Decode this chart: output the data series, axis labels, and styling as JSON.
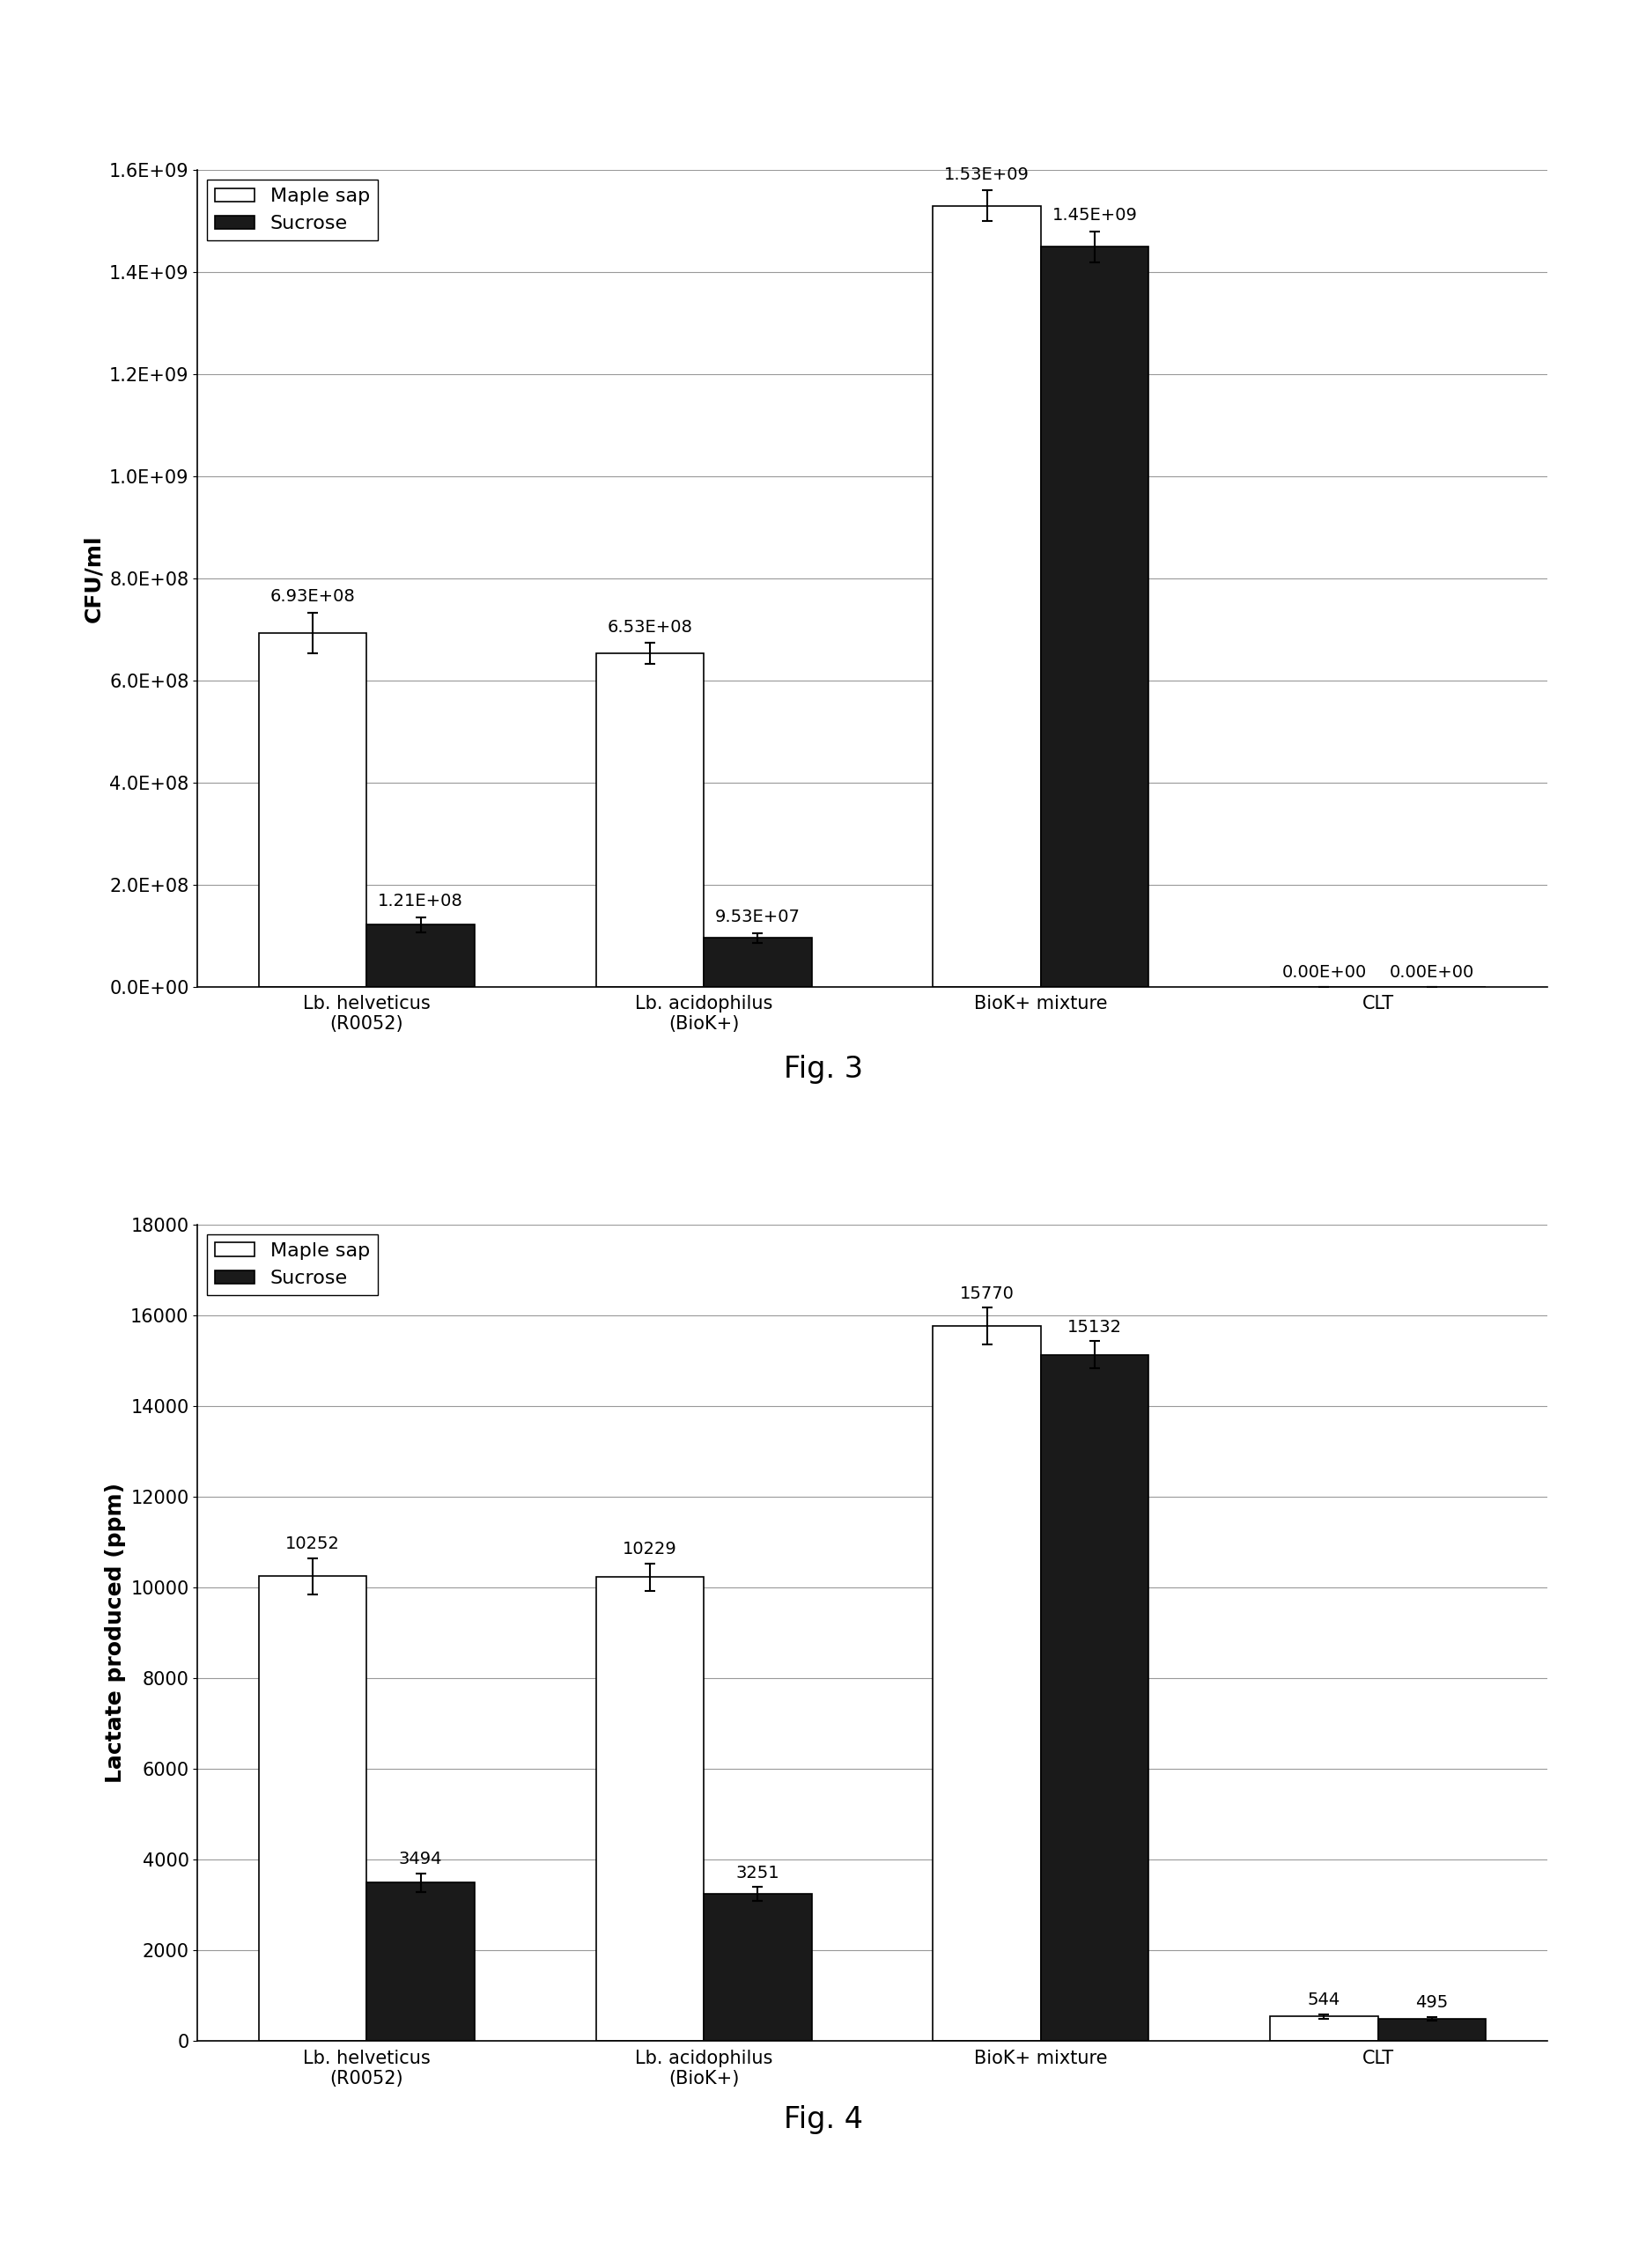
{
  "fig3": {
    "caption": "Fig. 3",
    "ylabel": "CFU/ml",
    "categories": [
      "Lb. helveticus\n(R0052)",
      "Lb. acidophilus\n(BioK+)",
      "BioK+ mixture",
      "CLT"
    ],
    "maple_sap": [
      693000000.0,
      653000000.0,
      1530000000.0,
      0.0
    ],
    "sucrose": [
      121000000.0,
      95300000.0,
      1450000000.0,
      0.0
    ],
    "maple_sap_err": [
      40000000.0,
      20000000.0,
      30000000.0,
      0.0
    ],
    "sucrose_err": [
      15000000.0,
      10000000.0,
      30000000.0,
      0.0
    ],
    "maple_sap_labels": [
      "6.93E+08",
      "6.53E+08",
      "1.53E+09",
      "0.00E+00"
    ],
    "sucrose_labels": [
      "1.21E+08",
      "9.53E+07",
      "1.45E+09",
      "0.00E+00"
    ],
    "ylim": [
      0,
      1600000000.0
    ],
    "yticks": [
      0.0,
      200000000.0,
      400000000.0,
      600000000.0,
      800000000.0,
      1000000000.0,
      1200000000.0,
      1400000000.0,
      1600000000.0
    ],
    "ytick_labels": [
      "0.0E+00",
      "2.0E+08",
      "4.0E+08",
      "6.0E+08",
      "8.0E+08",
      "1.0E+09",
      "1.2E+09",
      "1.4E+09",
      "1.6E+09"
    ]
  },
  "fig4": {
    "caption": "Fig. 4",
    "ylabel": "Lactate produced (ppm)",
    "categories": [
      "Lb. helveticus\n(R0052)",
      "Lb. acidophilus\n(BioK+)",
      "BioK+ mixture",
      "CLT"
    ],
    "maple_sap": [
      10252,
      10229,
      15770,
      544
    ],
    "sucrose": [
      3494,
      3251,
      15132,
      495
    ],
    "maple_sap_err": [
      400,
      300,
      400,
      50
    ],
    "sucrose_err": [
      200,
      150,
      300,
      40
    ],
    "maple_sap_labels": [
      "10252",
      "10229",
      "15770",
      "544"
    ],
    "sucrose_labels": [
      "3494",
      "3251",
      "15132",
      "495"
    ],
    "ylim": [
      0,
      18000
    ],
    "yticks": [
      0,
      2000,
      4000,
      6000,
      8000,
      10000,
      12000,
      14000,
      16000,
      18000
    ],
    "ytick_labels": [
      "0",
      "2000",
      "4000",
      "6000",
      "8000",
      "10000",
      "12000",
      "14000",
      "16000",
      "18000"
    ]
  },
  "bar_width": 0.32,
  "maple_sap_color": "#ffffff",
  "sucrose_color": "#1a1a1a",
  "edge_color": "#000000",
  "background_color": "#ffffff",
  "legend_labels": [
    "Maple sap",
    "Sucrose"
  ],
  "caption_fontsize": 24,
  "ylabel_fontsize": 18,
  "tick_fontsize": 15,
  "annot_fontsize": 14,
  "legend_fontsize": 16
}
